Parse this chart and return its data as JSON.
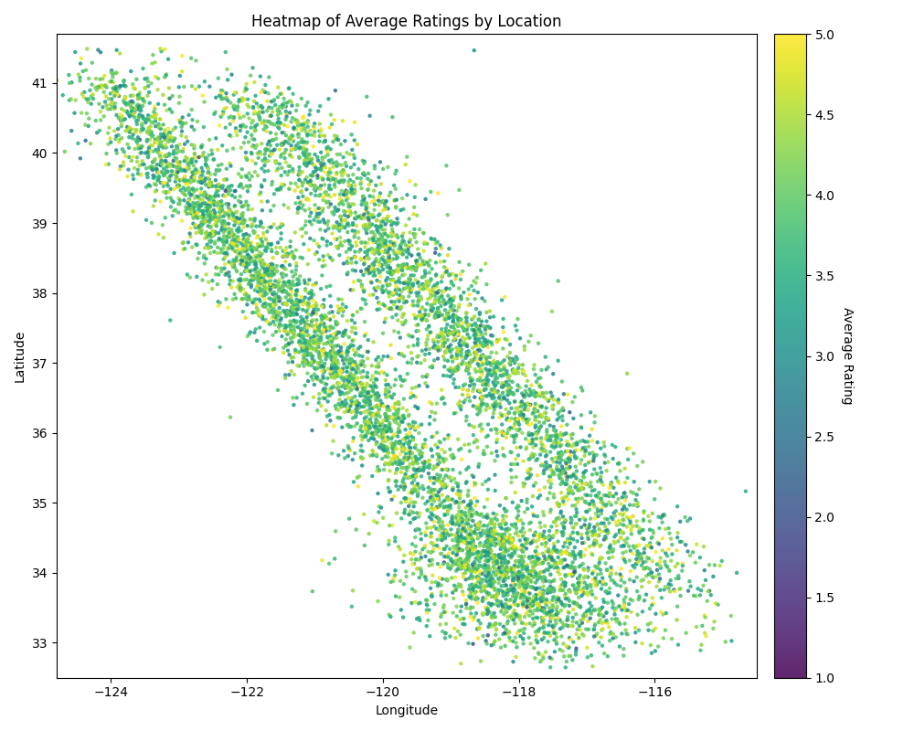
{
  "title": "Heatmap of Average Ratings by Location",
  "xlabel": "Longitude",
  "ylabel": "Latitude",
  "colorbar_label": "Average Rating",
  "cmap": "viridis",
  "vmin": 1.0,
  "vmax": 5.0,
  "xlim": [
    -124.8,
    -114.5
  ],
  "ylim": [
    32.5,
    41.7
  ],
  "xticks": [
    -124,
    -122,
    -120,
    -118,
    -116
  ],
  "yticks": [
    33,
    34,
    35,
    36,
    37,
    38,
    39,
    40,
    41
  ],
  "point_size": 10,
  "alpha": 0.85,
  "figsize": [
    10.0,
    8.0
  ],
  "dpi": 100,
  "seed": 42,
  "n_points": 8000,
  "rating_mean": 3.9,
  "rating_std": 0.6,
  "background_color": "#ffffff"
}
